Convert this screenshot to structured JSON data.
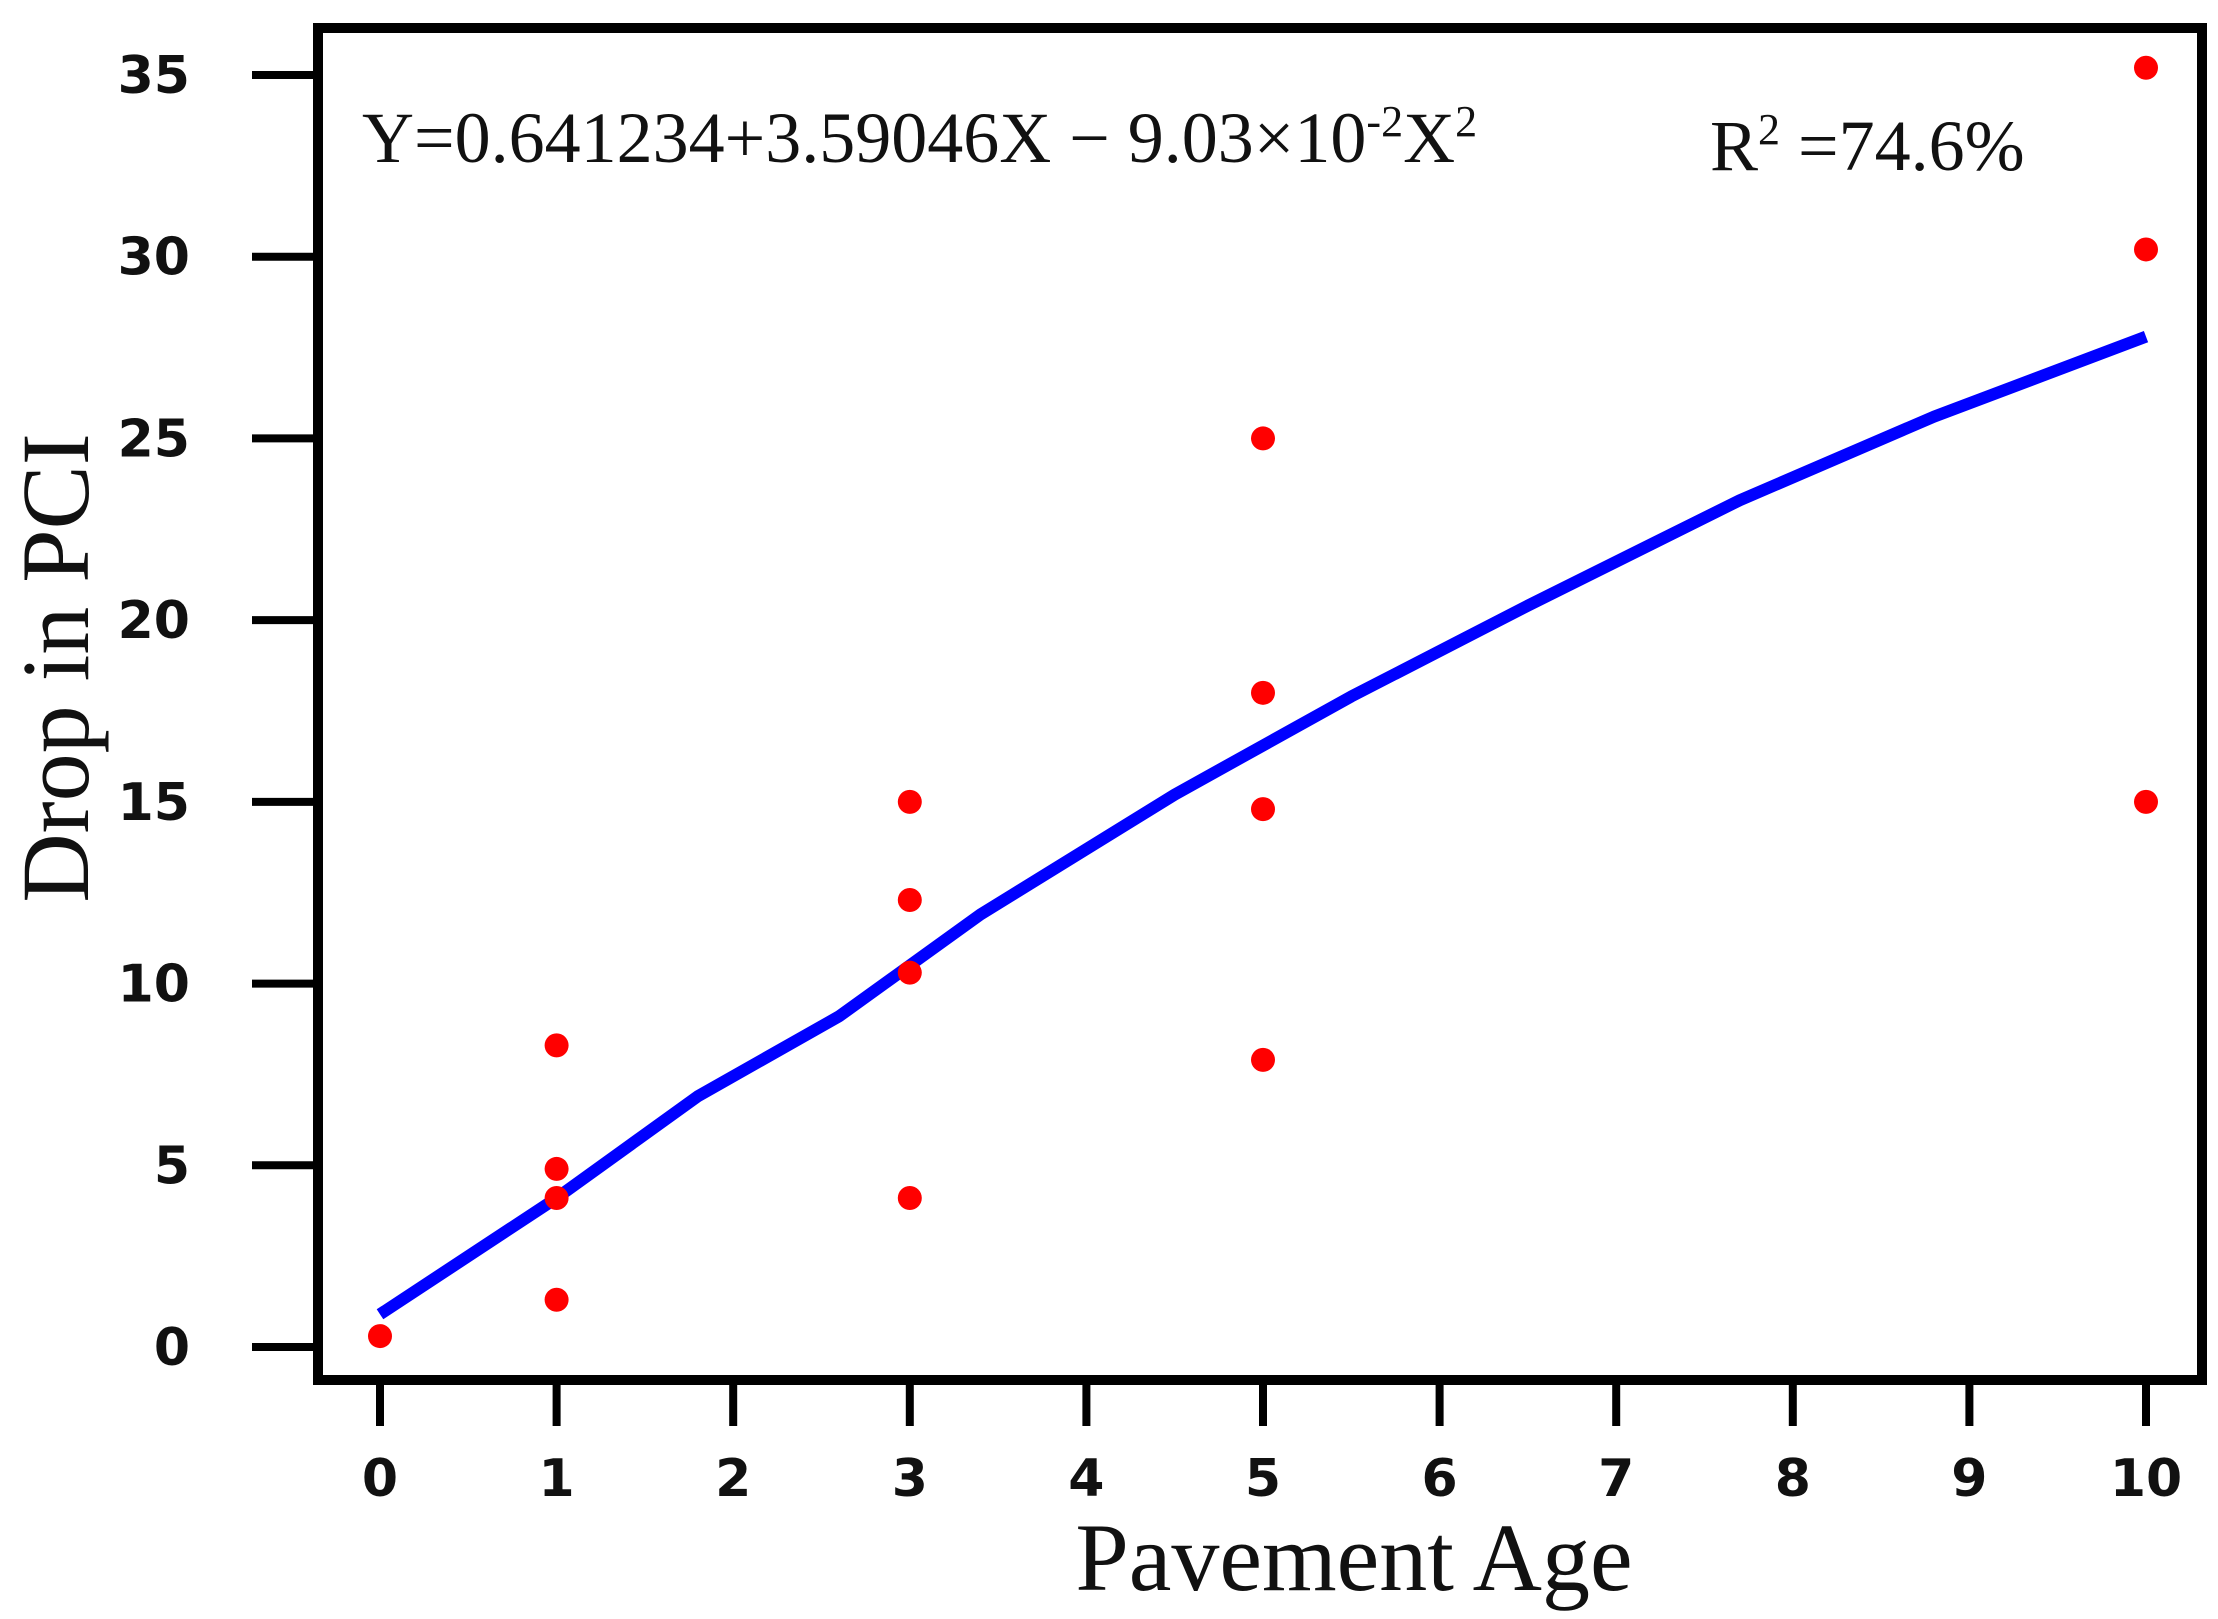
{
  "chart_data": {
    "type": "scatter",
    "xlabel": "Pavement Age",
    "ylabel": "Drop in PCI",
    "xlim": [
      0,
      10
    ],
    "ylim": [
      0,
      35
    ],
    "x_ticks": [
      0,
      1,
      2,
      3,
      4,
      5,
      6,
      7,
      8,
      9,
      10
    ],
    "y_ticks": [
      0,
      5,
      10,
      15,
      20,
      25,
      30,
      35
    ],
    "grid": false,
    "legend": "none",
    "equation": {
      "base": "Y=0.641234+3.59046X − 9.03×10",
      "exp1": "-2",
      "mid": "X",
      "exp2": "2"
    },
    "r_squared": {
      "base": "R",
      "exp": "2",
      "value": " =74.6%"
    },
    "points": [
      {
        "x": 0,
        "y": 0.3
      },
      {
        "x": 1,
        "y": 8.3
      },
      {
        "x": 1,
        "y": 4.9
      },
      {
        "x": 1,
        "y": 4.1
      },
      {
        "x": 1,
        "y": 1.3
      },
      {
        "x": 3,
        "y": 15.0
      },
      {
        "x": 3,
        "y": 12.3
      },
      {
        "x": 3,
        "y": 10.3
      },
      {
        "x": 3,
        "y": 4.1
      },
      {
        "x": 5,
        "y": 25.0
      },
      {
        "x": 5,
        "y": 18.0
      },
      {
        "x": 5,
        "y": 14.8
      },
      {
        "x": 5,
        "y": 7.9
      },
      {
        "x": 10,
        "y": 35.2
      },
      {
        "x": 10,
        "y": 30.2
      },
      {
        "x": 10,
        "y": 15.0
      }
    ],
    "fit_line": {
      "x": [
        0,
        1,
        1.8,
        2.6,
        3.4,
        4.5,
        5.5,
        6.5,
        7.7,
        8.8,
        10
      ],
      "y": [
        0.9,
        4.1,
        6.9,
        9.1,
        11.9,
        15.2,
        17.9,
        20.4,
        23.3,
        25.6,
        27.8
      ]
    },
    "colors": {
      "points": "#ff0000",
      "fit_line": "#0000ff",
      "frame": "#000000"
    }
  }
}
